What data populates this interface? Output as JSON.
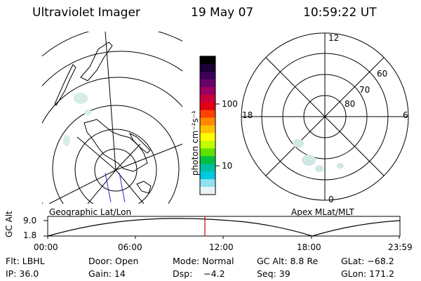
{
  "header": {
    "instrument": "Ultraviolet Imager",
    "date": "19 May 07",
    "time": "10:59:22 UT"
  },
  "left_panel": {
    "caption": "Geographic Lat/Lon"
  },
  "colorbar": {
    "unit_label": "photon cm⁻²s⁻¹",
    "ticks": [
      "100",
      "10"
    ],
    "colors": [
      "#000000",
      "#1a0033",
      "#3a005a",
      "#6a006a",
      "#9a0060",
      "#c8003a",
      "#e00010",
      "#ff4000",
      "#ff8800",
      "#ffc000",
      "#ffff00",
      "#c0ff00",
      "#60e000",
      "#00c040",
      "#00c0a0",
      "#00c8e0",
      "#90e0f0",
      "#e8f4f8"
    ]
  },
  "right_panel": {
    "caption": "Apex MLat/MLT",
    "mlt_labels": [
      "12",
      "18",
      "6",
      "0"
    ],
    "mlat_labels": [
      "60",
      "70",
      "80"
    ]
  },
  "altitude_plot": {
    "ylabel": "GC Alt",
    "y_ticks": [
      "9.0",
      "1.8"
    ],
    "x_ticks": [
      "00:00",
      "06:00",
      "12:00",
      "18:00",
      "23:59"
    ],
    "current_time_marker_color": "#d00000"
  },
  "footer": {
    "row1": {
      "flt": "Flt: LBHL",
      "door": "Door: Open",
      "mode": "Mode: Normal",
      "gc_alt": "GC Alt: 8.8 Re",
      "glat": "GLat: −68.2"
    },
    "row2": {
      "ip": "IP: 36.0",
      "gain": "Gain: 14",
      "dsp": "Dsp:    −4.2",
      "seq": "Seq: 39",
      "glon": "GLon: 171.2"
    }
  }
}
